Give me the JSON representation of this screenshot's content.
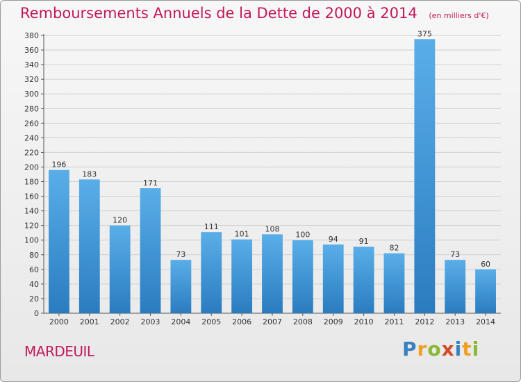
{
  "header": {
    "title": "Remboursements Annuels de la Dette de 2000 à 2014",
    "subtitle": "(en milliers d'€)"
  },
  "footer": {
    "commune": "MARDEUIL",
    "logo_letters": [
      {
        "char": "P",
        "color": "#3a7fc0"
      },
      {
        "char": "r",
        "color": "#f0a020"
      },
      {
        "char": "o",
        "color": "#8ab833"
      },
      {
        "char": "x",
        "color": "#d24a2a"
      },
      {
        "char": "i",
        "color": "#3a7fc0"
      },
      {
        "char": "t",
        "color": "#f0a020"
      },
      {
        "char": "i",
        "color": "#8ab833"
      }
    ]
  },
  "colors": {
    "bar_top": "#5aaee8",
    "bar_bottom": "#2a7cc0",
    "title": "#c2185b",
    "grid": "#d0d0d0"
  },
  "chart_data": {
    "type": "bar",
    "title": "Remboursements Annuels de la Dette de 2000 à 2014",
    "subtitle": "(en milliers d'€)",
    "categories": [
      "2000",
      "2001",
      "2002",
      "2003",
      "2004",
      "2005",
      "2006",
      "2007",
      "2008",
      "2009",
      "2010",
      "2011",
      "2012",
      "2013",
      "2014"
    ],
    "values": [
      196,
      183,
      120,
      171,
      73,
      111,
      101,
      108,
      100,
      94,
      91,
      82,
      375,
      73,
      60
    ],
    "ylim": [
      0,
      380
    ],
    "yticks": [
      0,
      20,
      40,
      60,
      80,
      100,
      120,
      140,
      160,
      180,
      200,
      220,
      240,
      260,
      280,
      300,
      320,
      340,
      360,
      380
    ],
    "grid": true
  }
}
